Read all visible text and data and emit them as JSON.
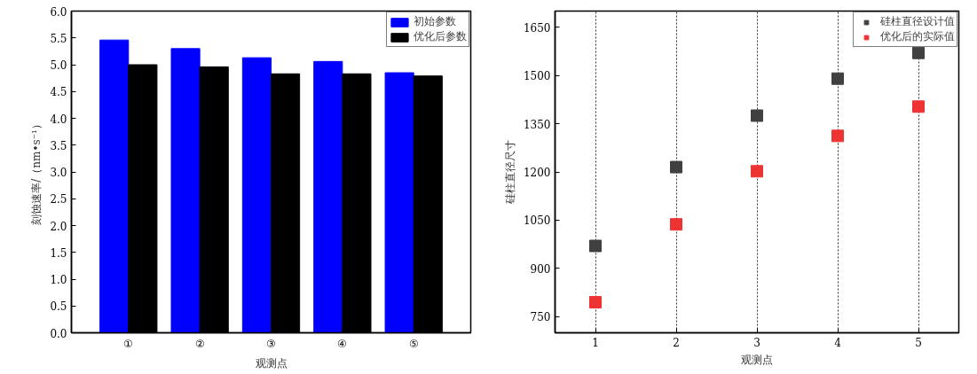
{
  "chart_data": [
    {
      "type": "bar",
      "xlabel": "观测点",
      "ylabel": "刻蚀速率/（nm•s⁻¹）",
      "categories": [
        "①",
        "②",
        "③",
        "④",
        "⑤"
      ],
      "series": [
        {
          "name": "初始参数",
          "color": "#0000ff",
          "values": [
            5.46,
            5.3,
            5.13,
            5.06,
            4.85
          ]
        },
        {
          "name": "优化后参数",
          "color": "#000000",
          "values": [
            5.0,
            4.96,
            4.83,
            4.83,
            4.79
          ]
        }
      ],
      "ylim": [
        0,
        6
      ],
      "yticks": [
        {
          "value": 0,
          "label": "0.0"
        },
        {
          "value": 0.5,
          "label": "0.5"
        },
        {
          "value": 1,
          "label": "1.0"
        },
        {
          "value": 1.5,
          "label": "1.5"
        },
        {
          "value": 2,
          "label": "2.0"
        },
        {
          "value": 2.5,
          "label": "2.5"
        },
        {
          "value": 3,
          "label": "3.0"
        },
        {
          "value": 3.5,
          "label": "3.5"
        },
        {
          "value": 4,
          "label": "4.0"
        },
        {
          "value": 4.5,
          "label": "4.5"
        },
        {
          "value": 5,
          "label": "5.0"
        },
        {
          "value": 5.5,
          "label": "5.5"
        },
        {
          "value": 6,
          "label": "6.0"
        }
      ],
      "legend": "top right",
      "grid": false
    },
    {
      "type": "scatter",
      "xlabel": "观测点",
      "ylabel": "硅柱直径尺寸",
      "x": [
        1,
        2,
        3,
        4,
        5
      ],
      "series": [
        {
          "name": "硅柱直径设计值",
          "color": "#404040",
          "values": [
            970,
            1215,
            1375,
            1490,
            1570
          ]
        },
        {
          "name": "优化后的实际值",
          "color": "#ee3333",
          "values": [
            795,
            1037,
            1202,
            1312,
            1403
          ]
        }
      ],
      "xlim": [
        0.5,
        5.5
      ],
      "xticks": [
        1,
        2,
        3,
        4,
        5
      ],
      "ylim": [
        700,
        1700
      ],
      "yticks": [
        750,
        900,
        1050,
        1200,
        1350,
        1500,
        1650
      ],
      "marker": "square",
      "legend": "top right",
      "grid": "x"
    }
  ]
}
